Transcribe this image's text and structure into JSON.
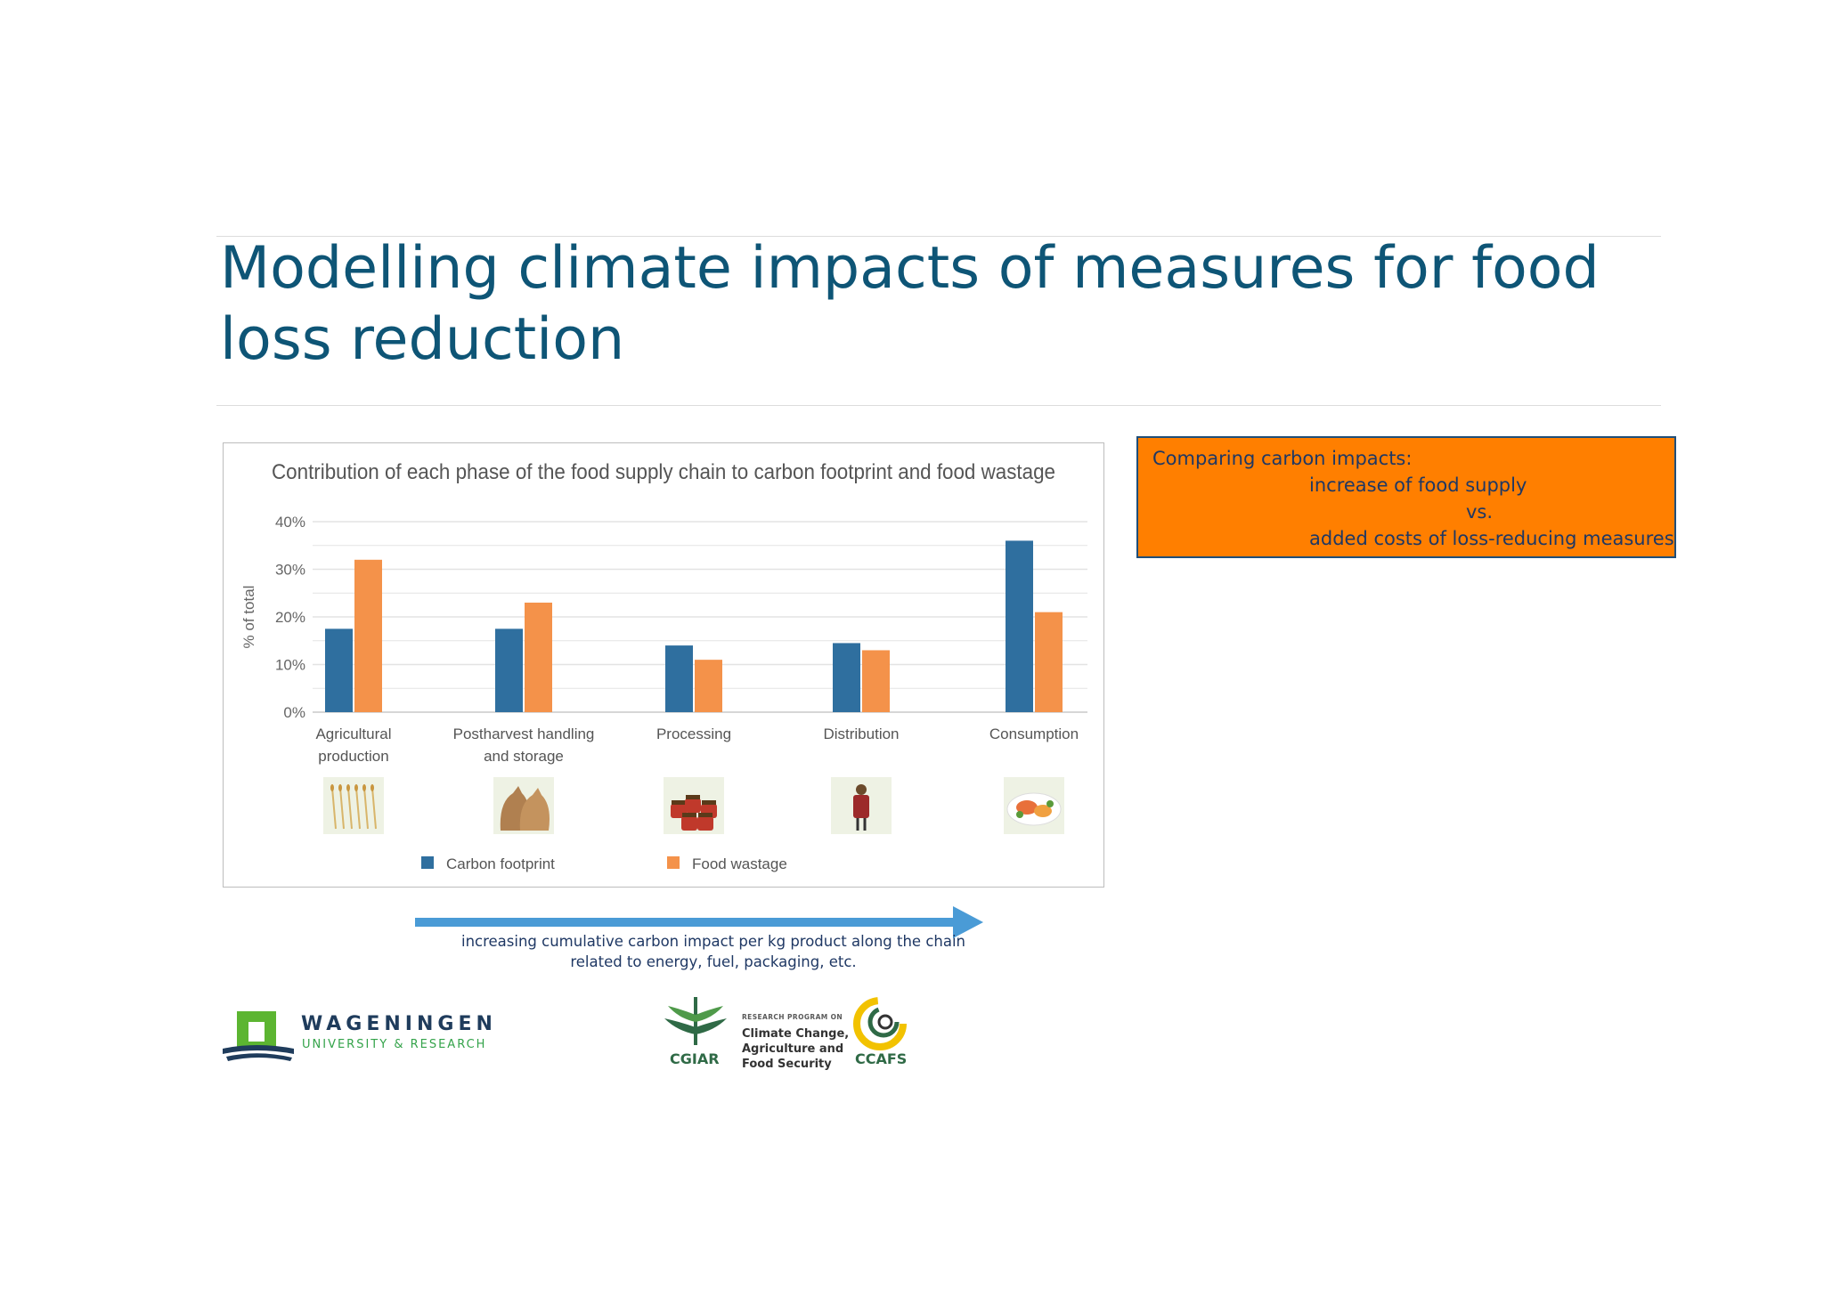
{
  "slide": {
    "title": "Modelling climate impacts of measures for food loss reduction"
  },
  "callout": {
    "line1": "Comparing carbon impacts:",
    "line2": "increase of food supply",
    "line3": "vs.",
    "line4": "added costs of loss-reducing measures"
  },
  "arrow_caption": {
    "line1": "increasing cumulative carbon impact per kg product along the chain",
    "line2": "related to energy, fuel, packaging, etc."
  },
  "logos": {
    "wur_name": "WAGENINGEN",
    "wur_sub": "UNIVERSITY & RESEARCH",
    "cgiar": "CGIAR",
    "program_small": "RESEARCH PROGRAM ON",
    "program_line1": "Climate Change,",
    "program_line2": "Agriculture and",
    "program_line3": "Food Security",
    "ccafs": "CCAFS"
  },
  "colors": {
    "carbon": "#2f6f9f",
    "wastage": "#f4924a",
    "title": "#0e5576",
    "callout_bg": "#ff7f00",
    "arrow": "#4a9bd6"
  },
  "chart_data": {
    "type": "bar",
    "title": "Contribution of each phase of the food supply chain to carbon footprint and food wastage",
    "ylabel": "% of total",
    "ylim": [
      0,
      40
    ],
    "yticks": [
      "0%",
      "10%",
      "20%",
      "30%",
      "40%"
    ],
    "categories": [
      [
        "Agricultural",
        "production"
      ],
      [
        "Postharvest handling",
        "and storage"
      ],
      [
        "Processing"
      ],
      [
        "Distribution"
      ],
      [
        "Consumption"
      ]
    ],
    "series": [
      {
        "name": "Carbon footprint",
        "values": [
          17.5,
          17.5,
          14,
          14.5,
          36
        ]
      },
      {
        "name": "Food wastage",
        "values": [
          32,
          23,
          11,
          13,
          21
        ]
      }
    ],
    "legend": "bottom",
    "grid": true
  }
}
